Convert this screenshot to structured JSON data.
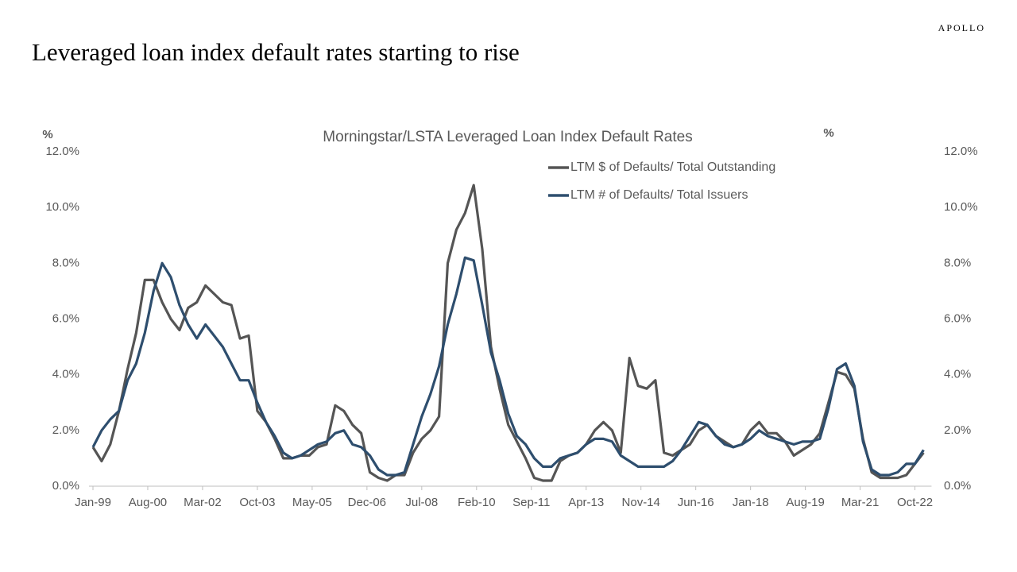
{
  "brand": "APOLLO",
  "headline": "Leveraged loan index default rates starting to rise",
  "chart_data": {
    "type": "line",
    "title": "Morningstar/LSTA Leveraged Loan Index Default Rates",
    "y_label": "%",
    "y2_label": "%",
    "legend": "top-right",
    "x": [
      "Jan-99",
      "Apr-99",
      "Jul-99",
      "Oct-99",
      "Jan-00",
      "Apr-00",
      "Jul-00",
      "Oct-00",
      "Jan-01",
      "Apr-01",
      "Jul-01",
      "Oct-01",
      "Jan-02",
      "Apr-02",
      "Jul-02",
      "Oct-02",
      "Jan-03",
      "Apr-03",
      "Jul-03",
      "Oct-03",
      "Jan-04",
      "Apr-04",
      "Jul-04",
      "Oct-04",
      "Jan-05",
      "Apr-05",
      "Jul-05",
      "Oct-05",
      "Jan-06",
      "Apr-06",
      "Jul-06",
      "Oct-06",
      "Jan-07",
      "Apr-07",
      "Jul-07",
      "Oct-07",
      "Jan-08",
      "Apr-08",
      "Jul-08",
      "Oct-08",
      "Jan-09",
      "Apr-09",
      "Jul-09",
      "Oct-09",
      "Jan-10",
      "Apr-10",
      "Jul-10",
      "Oct-10",
      "Jan-11",
      "Apr-11",
      "Jul-11",
      "Oct-11",
      "Jan-12",
      "Apr-12",
      "Jul-12",
      "Oct-12",
      "Jan-13",
      "Apr-13",
      "Jul-13",
      "Oct-13",
      "Jan-14",
      "Apr-14",
      "Jul-14",
      "Oct-14",
      "Jan-15",
      "Apr-15",
      "Jul-15",
      "Oct-15",
      "Jan-16",
      "Apr-16",
      "Jul-16",
      "Oct-16",
      "Jan-17",
      "Apr-17",
      "Jul-17",
      "Oct-17",
      "Jan-18",
      "Apr-18",
      "Jul-18",
      "Oct-18",
      "Jan-19",
      "Apr-19",
      "Jul-19",
      "Oct-19",
      "Jan-20",
      "Apr-20",
      "Jul-20",
      "Oct-20",
      "Jan-21",
      "Apr-21",
      "Jul-21",
      "Oct-21",
      "Jan-22",
      "Apr-22",
      "Jul-22",
      "Oct-22",
      "Jan-23"
    ],
    "series": [
      {
        "name": "LTM $ of Defaults/ Total Outstanding",
        "color": "#555555",
        "values": [
          1.4,
          0.9,
          1.5,
          2.7,
          4.2,
          5.5,
          7.4,
          7.4,
          6.6,
          6.0,
          5.6,
          6.4,
          6.6,
          7.2,
          6.9,
          6.6,
          6.5,
          5.3,
          5.4,
          2.7,
          2.3,
          1.7,
          1.0,
          1.0,
          1.1,
          1.1,
          1.4,
          1.5,
          2.9,
          2.7,
          2.2,
          1.9,
          0.5,
          0.3,
          0.2,
          0.4,
          0.4,
          1.2,
          1.7,
          2.0,
          2.5,
          8.0,
          9.2,
          9.8,
          10.8,
          8.5,
          5.0,
          3.5,
          2.2,
          1.6,
          1.0,
          0.3,
          0.2,
          0.2,
          0.9,
          1.1,
          1.2,
          1.5,
          2.0,
          2.3,
          2.0,
          1.2,
          4.6,
          3.6,
          3.5,
          3.8,
          1.2,
          1.1,
          1.3,
          1.5,
          2.0,
          2.2,
          1.8,
          1.6,
          1.4,
          1.5,
          2.0,
          2.3,
          1.9,
          1.9,
          1.6,
          1.1,
          1.3,
          1.5,
          1.9,
          3.0,
          4.1,
          4.0,
          3.5,
          1.7,
          0.5,
          0.3,
          0.3,
          0.3,
          0.4,
          0.8,
          1.2
        ]
      },
      {
        "name": "LTM # of Defaults/ Total Issuers",
        "color": "#2e4e6e",
        "values": [
          1.4,
          2.0,
          2.4,
          2.7,
          3.8,
          4.4,
          5.5,
          7.0,
          8.0,
          7.5,
          6.5,
          5.8,
          5.3,
          5.8,
          5.4,
          5.0,
          4.4,
          3.8,
          3.8,
          3.0,
          2.3,
          1.8,
          1.2,
          1.0,
          1.1,
          1.3,
          1.5,
          1.6,
          1.9,
          2.0,
          1.5,
          1.4,
          1.1,
          0.6,
          0.4,
          0.4,
          0.5,
          1.5,
          2.5,
          3.3,
          4.3,
          5.8,
          6.9,
          8.2,
          8.1,
          6.5,
          4.8,
          3.8,
          2.6,
          1.8,
          1.5,
          1.0,
          0.7,
          0.7,
          1.0,
          1.1,
          1.2,
          1.5,
          1.7,
          1.7,
          1.6,
          1.1,
          0.9,
          0.7,
          0.7,
          0.7,
          0.7,
          0.9,
          1.3,
          1.8,
          2.3,
          2.2,
          1.8,
          1.5,
          1.4,
          1.5,
          1.7,
          2.0,
          1.8,
          1.7,
          1.6,
          1.5,
          1.6,
          1.6,
          1.7,
          2.8,
          4.2,
          4.4,
          3.6,
          1.6,
          0.6,
          0.4,
          0.4,
          0.5,
          0.8,
          0.8,
          1.3
        ]
      }
    ],
    "xticks": [
      "Jan-99",
      "Aug-00",
      "Mar-02",
      "Oct-03",
      "May-05",
      "Dec-06",
      "Jul-08",
      "Feb-10",
      "Sep-11",
      "Apr-13",
      "Nov-14",
      "Jun-16",
      "Jan-18",
      "Aug-19",
      "Mar-21",
      "Oct-22"
    ],
    "ylim": [
      0,
      12
    ],
    "yticks": [
      {
        "value": 0,
        "label": "0.0%"
      },
      {
        "value": 2,
        "label": "2.0%"
      },
      {
        "value": 4,
        "label": "4.0%"
      },
      {
        "value": 6,
        "label": "6.0%"
      },
      {
        "value": 8,
        "label": "8.0%"
      },
      {
        "value": 10,
        "label": "10.0%"
      },
      {
        "value": 12,
        "label": "12.0%"
      }
    ],
    "y2lim": [
      0,
      12
    ],
    "y2ticks": [
      {
        "value": 0,
        "label": "0.0%"
      },
      {
        "value": 2,
        "label": "2.0%"
      },
      {
        "value": 4,
        "label": "4.0%"
      },
      {
        "value": 6,
        "label": "6.0%"
      },
      {
        "value": 8,
        "label": "8.0%"
      },
      {
        "value": 10,
        "label": "10.0%"
      },
      {
        "value": 12,
        "label": "12.0%"
      }
    ]
  }
}
